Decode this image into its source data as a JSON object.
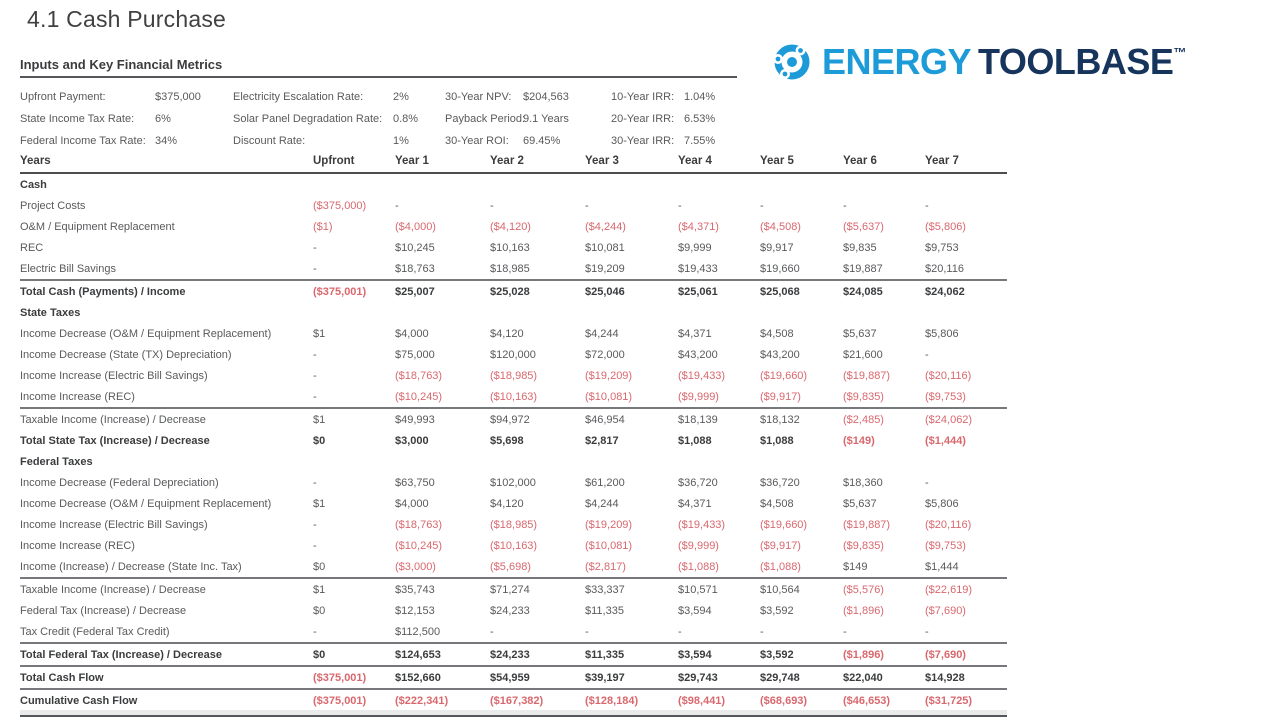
{
  "page": {
    "title": "4.1 Cash Purchase"
  },
  "logo": {
    "brand_primary": "ENERGY",
    "brand_secondary": "TOOLBASE",
    "trademark": "™",
    "icon": "orbit-dots-icon",
    "color_primary": "#1d9bd8",
    "color_secondary": "#16345c"
  },
  "colors": {
    "negative": "#d9686e",
    "text": "#595a5c",
    "text_bold": "#3b3c3e"
  },
  "inputs": {
    "heading": "Inputs and Key Financial Metrics",
    "columns": [
      {
        "items": [
          {
            "label": "Upfront Payment:",
            "value": "$375,000"
          },
          {
            "label": "State Income Tax Rate:",
            "value": "6%"
          },
          {
            "label": "Federal Income Tax Rate:",
            "value": "34%"
          }
        ]
      },
      {
        "items": [
          {
            "label": "Electricity Escalation Rate:",
            "value": "2%"
          },
          {
            "label": "Solar Panel Degradation Rate:",
            "value": "0.8%"
          },
          {
            "label": "Discount Rate:",
            "value": "1%"
          }
        ]
      },
      {
        "items": [
          {
            "label": "30-Year NPV:",
            "value": "$204,563"
          },
          {
            "label": "Payback Period:",
            "value": "9.1 Years"
          },
          {
            "label": "30-Year ROI:",
            "value": "69.45%"
          }
        ]
      },
      {
        "items": [
          {
            "label": "10-Year IRR:",
            "value": "1.04%"
          },
          {
            "label": "20-Year IRR:",
            "value": "6.53%"
          },
          {
            "label": "30-Year IRR:",
            "value": "7.55%"
          }
        ]
      }
    ]
  },
  "table": {
    "headers": [
      "Years",
      "Upfront",
      "Year 1",
      "Year 2",
      "Year 3",
      "Year 4",
      "Year 5",
      "Year 6",
      "Year 7"
    ],
    "rows": [
      {
        "label": "Cash",
        "type": "section",
        "values": []
      },
      {
        "label": "Project Costs",
        "type": "normal",
        "values": [
          "($375,000)",
          "-",
          "-",
          "-",
          "-",
          "-",
          "-",
          "-"
        ]
      },
      {
        "label": "O&M / Equipment Replacement",
        "type": "normal",
        "values": [
          "($1)",
          "($4,000)",
          "($4,120)",
          "($4,244)",
          "($4,371)",
          "($4,508)",
          "($5,637)",
          "($5,806)"
        ]
      },
      {
        "label": "REC",
        "type": "normal",
        "values": [
          "-",
          "$10,245",
          "$10,163",
          "$10,081",
          "$9,999",
          "$9,917",
          "$9,835",
          "$9,753"
        ]
      },
      {
        "label": "Electric Bill Savings",
        "type": "normal",
        "values": [
          "-",
          "$18,763",
          "$18,985",
          "$19,209",
          "$19,433",
          "$19,660",
          "$19,887",
          "$20,116"
        ]
      },
      {
        "label": "Total Cash (Payments) / Income",
        "type": "total-top",
        "values": [
          "($375,001)",
          "$25,007",
          "$25,028",
          "$25,046",
          "$25,061",
          "$25,068",
          "$24,085",
          "$24,062"
        ]
      },
      {
        "label": "State Taxes",
        "type": "section",
        "values": []
      },
      {
        "label": "Income Decrease (O&M / Equipment Replacement)",
        "type": "normal",
        "values": [
          "$1",
          "$4,000",
          "$4,120",
          "$4,244",
          "$4,371",
          "$4,508",
          "$5,637",
          "$5,806"
        ]
      },
      {
        "label": "Income Decrease (State (TX) Depreciation)",
        "type": "normal",
        "values": [
          "-",
          "$75,000",
          "$120,000",
          "$72,000",
          "$43,200",
          "$43,200",
          "$21,600",
          "-"
        ]
      },
      {
        "label": "Income Increase (Electric Bill Savings)",
        "type": "normal",
        "values": [
          "-",
          "($18,763)",
          "($18,985)",
          "($19,209)",
          "($19,433)",
          "($19,660)",
          "($19,887)",
          "($20,116)"
        ]
      },
      {
        "label": "Income Increase (REC)",
        "type": "normal",
        "values": [
          "-",
          "($10,245)",
          "($10,163)",
          "($10,081)",
          "($9,999)",
          "($9,917)",
          "($9,835)",
          "($9,753)"
        ]
      },
      {
        "label": "Taxable Income (Increase) / Decrease",
        "type": "rule",
        "values": [
          "$1",
          "$49,993",
          "$94,972",
          "$46,954",
          "$18,139",
          "$18,132",
          "($2,485)",
          "($24,062)"
        ]
      },
      {
        "label": "Total State Tax (Increase) / Decrease",
        "type": "bold",
        "values": [
          "$0",
          "$3,000",
          "$5,698",
          "$2,817",
          "$1,088",
          "$1,088",
          "($149)",
          "($1,444)"
        ]
      },
      {
        "label": "Federal Taxes",
        "type": "section",
        "values": []
      },
      {
        "label": "Income Decrease (Federal Depreciation)",
        "type": "normal",
        "values": [
          "-",
          "$63,750",
          "$102,000",
          "$61,200",
          "$36,720",
          "$36,720",
          "$18,360",
          "-"
        ]
      },
      {
        "label": "Income Decrease (O&M / Equipment Replacement)",
        "type": "normal",
        "values": [
          "$1",
          "$4,000",
          "$4,120",
          "$4,244",
          "$4,371",
          "$4,508",
          "$5,637",
          "$5,806"
        ]
      },
      {
        "label": "Income Increase (Electric Bill Savings)",
        "type": "normal",
        "values": [
          "-",
          "($18,763)",
          "($18,985)",
          "($19,209)",
          "($19,433)",
          "($19,660)",
          "($19,887)",
          "($20,116)"
        ]
      },
      {
        "label": "Income Increase (REC)",
        "type": "normal",
        "values": [
          "-",
          "($10,245)",
          "($10,163)",
          "($10,081)",
          "($9,999)",
          "($9,917)",
          "($9,835)",
          "($9,753)"
        ]
      },
      {
        "label": "Income (Increase) / Decrease (State Inc. Tax)",
        "type": "normal",
        "values": [
          "$0",
          "($3,000)",
          "($5,698)",
          "($2,817)",
          "($1,088)",
          "($1,088)",
          "$149",
          "$1,444"
        ]
      },
      {
        "label": "Taxable Income (Increase) / Decrease",
        "type": "rule",
        "values": [
          "$1",
          "$35,743",
          "$71,274",
          "$33,337",
          "$10,571",
          "$10,564",
          "($5,576)",
          "($22,619)"
        ]
      },
      {
        "label": "Federal Tax (Increase) / Decrease",
        "type": "normal",
        "values": [
          "$0",
          "$12,153",
          "$24,233",
          "$11,335",
          "$3,594",
          "$3,592",
          "($1,896)",
          "($7,690)"
        ]
      },
      {
        "label": "Tax Credit (Federal Tax Credit)",
        "type": "normal",
        "values": [
          "-",
          "$112,500",
          "-",
          "-",
          "-",
          "-",
          "-",
          "-"
        ]
      },
      {
        "label": "Total Federal Tax (Increase) / Decrease",
        "type": "total-both",
        "values": [
          "$0",
          "$124,653",
          "$24,233",
          "$11,335",
          "$3,594",
          "$3,592",
          "($1,896)",
          "($7,690)"
        ]
      },
      {
        "label": "Total Cash Flow",
        "type": "total-bottom",
        "values": [
          "($375,001)",
          "$152,660",
          "$54,959",
          "$39,197",
          "$29,743",
          "$29,748",
          "$22,040",
          "$14,928"
        ]
      },
      {
        "label": "Cumulative Cash Flow",
        "type": "total-double",
        "values": [
          "($375,001)",
          "($222,341)",
          "($167,382)",
          "($128,184)",
          "($98,441)",
          "($68,693)",
          "($46,653)",
          "($31,725)"
        ]
      }
    ]
  }
}
